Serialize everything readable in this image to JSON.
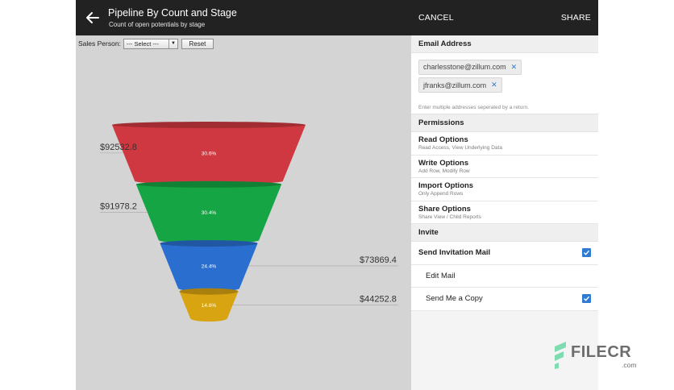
{
  "app": {
    "title": "Pipeline By Count and Stage",
    "subtitle": "Count of open potentials by stage"
  },
  "filter": {
    "label": "Sales Person:",
    "select_value": "--- Select ---",
    "reset_label": "Reset"
  },
  "chart_data": {
    "type": "funnel",
    "stages": [
      {
        "value_label": "$92532.8",
        "percent_label": "30.6%",
        "value": 92532.8,
        "percent": 30.6,
        "color": "#cf3840"
      },
      {
        "value_label": "$91978.2",
        "percent_label": "30.4%",
        "value": 91978.2,
        "percent": 30.4,
        "color": "#15a544"
      },
      {
        "value_label": "$73869.4",
        "percent_label": "24.4%",
        "value": 73869.4,
        "percent": 24.4,
        "color": "#2a6fd0"
      },
      {
        "value_label": "$44252.8",
        "percent_label": "14.6%",
        "value": 44252.8,
        "percent": 14.6,
        "color": "#d9a412"
      }
    ]
  },
  "panel": {
    "cancel_label": "CANCEL",
    "share_label": "SHARE",
    "email_section": "Email Address",
    "emails": [
      "charlesstone@zillum.com",
      "jfranks@zillum.com"
    ],
    "email_hint": "Enter multiple addresses seperated by a return.",
    "permissions_section": "Permissions",
    "options": [
      {
        "title": "Read Options",
        "sub": "Read Access, View Underlying Data"
      },
      {
        "title": "Write Options",
        "sub": "Add Row, Modify Row"
      },
      {
        "title": "Import Options",
        "sub": "Only Append Rows"
      },
      {
        "title": "Share Options",
        "sub": "Share View / Child Reports"
      }
    ],
    "invite_section": "Invite",
    "send_invitation": "Send Invitation Mail",
    "send_invitation_checked": true,
    "edit_mail": "Edit Mail",
    "send_copy": "Send Me a Copy",
    "send_copy_checked": true
  },
  "watermark": {
    "text": "FILECR",
    "domain": ".com"
  },
  "colors": {
    "header": "#222222",
    "accent": "#2f7bd1",
    "chart_bg": "#d4d4d4"
  }
}
